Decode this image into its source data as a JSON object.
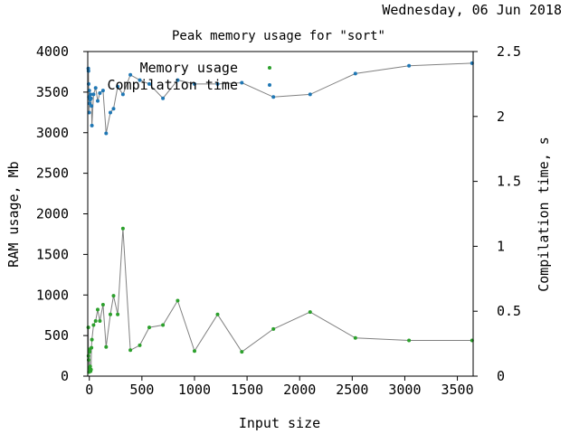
{
  "header": {
    "date": "Wednesday, 06 Jun 2018"
  },
  "chart_data": {
    "type": "line",
    "title": "Peak memory usage for \"sort\"",
    "xlabel": "Input size",
    "ylabel": "RAM usage, Mb",
    "y2label": "Compilation time, s",
    "xlim": [
      -15,
      3650
    ],
    "ylim": [
      0,
      4000
    ],
    "y2lim": [
      0,
      2.5
    ],
    "xticks": [
      0,
      500,
      1000,
      1500,
      2000,
      2500,
      3000,
      3500
    ],
    "yticks": [
      0,
      500,
      1000,
      1500,
      2000,
      2500,
      3000,
      3500,
      4000
    ],
    "y2ticks": [
      0,
      0.5,
      1,
      1.5,
      2,
      2.5
    ],
    "grid": false,
    "legend_position": "top-left",
    "series": [
      {
        "name": "Memory usage",
        "axis": "left",
        "color": "#2ca02c",
        "x": [
          -10,
          -8,
          -6,
          -4,
          -2,
          0,
          2,
          5,
          8,
          12,
          16,
          20,
          25,
          40,
          60,
          80,
          100,
          130,
          160,
          200,
          230,
          270,
          320,
          390,
          480,
          570,
          700,
          840,
          1000,
          1220,
          1450,
          1750,
          2100,
          2530,
          3040,
          3640
        ],
        "y": [
          600,
          250,
          200,
          50,
          100,
          330,
          300,
          90,
          120,
          60,
          80,
          350,
          450,
          630,
          680,
          820,
          680,
          880,
          360,
          760,
          990,
          760,
          1820,
          320,
          380,
          600,
          630,
          930,
          310,
          760,
          300,
          580,
          790,
          470,
          440,
          440
        ]
      },
      {
        "name": "Compilation time",
        "axis": "right",
        "color": "#1f77b4",
        "x": [
          -10,
          -8,
          -6,
          -4,
          -2,
          0,
          2,
          5,
          8,
          12,
          16,
          20,
          25,
          40,
          60,
          80,
          100,
          130,
          160,
          200,
          230,
          270,
          320,
          390,
          480,
          570,
          700,
          840,
          1000,
          1220,
          1450,
          1750,
          2100,
          2530,
          3040,
          3640
        ],
        "y": [
          2.37,
          2.35,
          2.25,
          2.15,
          2.03,
          2.2,
          2.1,
          2.14,
          2.13,
          2.17,
          2.14,
          2.08,
          1.93,
          2.17,
          2.22,
          2.12,
          2.18,
          2.2,
          1.87,
          2.03,
          2.06,
          2.23,
          2.17,
          2.32,
          2.28,
          2.25,
          2.14,
          2.28,
          2.25,
          2.25,
          2.26,
          2.15,
          2.17,
          2.33,
          2.39,
          2.41
        ]
      }
    ]
  }
}
